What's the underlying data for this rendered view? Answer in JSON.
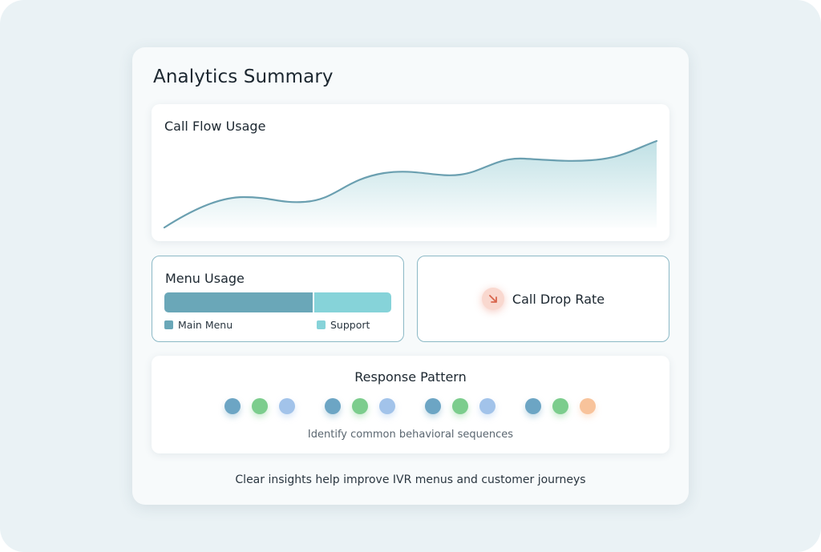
{
  "card": {
    "title": "Analytics Summary",
    "footer": "Clear insights help improve IVR menus and customer journeys"
  },
  "call_flow": {
    "title": "Call Flow Usage",
    "line_color": "#6a9fb0",
    "fill_color": "#b9dde2"
  },
  "menu_usage": {
    "title": "Menu Usage",
    "segments": [
      {
        "label": "Main Menu",
        "share": 0.66,
        "color": "#6aa7b8"
      },
      {
        "label": "Support",
        "share": 0.34,
        "color": "#86d3d9"
      }
    ]
  },
  "call_drop": {
    "label": "Call Drop Rate",
    "icon": "trend-down-arrow-icon",
    "accent": "#e7846c"
  },
  "response_pattern": {
    "title": "Response Pattern",
    "caption": "Identify common behavioral sequences",
    "groups": [
      [
        "#6ca5c4",
        "#7ccd8d",
        "#a2c3ea"
      ],
      [
        "#6ca5c4",
        "#7ccd8d",
        "#a2c3ea"
      ],
      [
        "#6ca5c4",
        "#7ccd8d",
        "#a2c3ea"
      ],
      [
        "#6ca5c4",
        "#7ccd8d",
        "#f8c39b"
      ]
    ]
  }
}
